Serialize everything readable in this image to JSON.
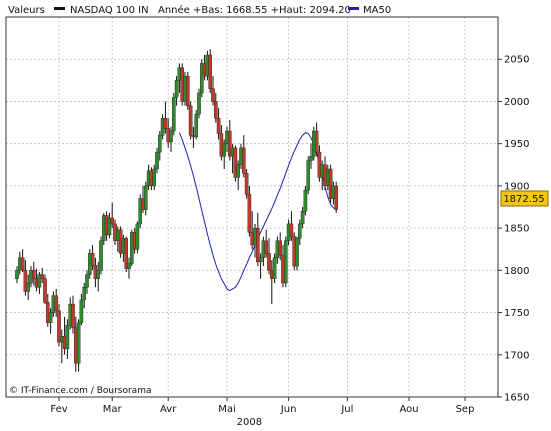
{
  "header": {
    "label": "Valeurs",
    "series_name": "NASDAQ 100 IN",
    "stats": "Année +Bas: 1668.55 +Haut: 2094.20",
    "ma_name": "MA50"
  },
  "copyright": "© IT-Finance.com / Boursorama",
  "last_value": "1872.55",
  "colors": {
    "up": "#2e8b2e",
    "down": "#c0392b",
    "wick": "#111111",
    "ma": "#1f23b0",
    "grid": "#bcbcbc",
    "last_label_bg": "#f5c518"
  },
  "chart_data": {
    "type": "candlestick",
    "title": "",
    "xlabel": "2008",
    "ylabel": "",
    "ylim": [
      1650,
      2100
    ],
    "yticks": [
      1650,
      1700,
      1750,
      1800,
      1850,
      1900,
      1950,
      2000,
      2050
    ],
    "xtick_labels": [
      {
        "label": "Fev",
        "index": 15
      },
      {
        "label": "Mar",
        "index": 34
      },
      {
        "label": "Avr",
        "index": 54
      },
      {
        "label": "Mai",
        "index": 75
      },
      {
        "label": "2008",
        "index": 83
      },
      {
        "label": "Jun",
        "index": 97
      },
      {
        "label": "Jul",
        "index": 118
      },
      {
        "label": "Aou",
        "index": 140
      },
      {
        "label": "Sep",
        "index": 160
      }
    ],
    "grid": true,
    "series": [
      {
        "name": "NASDAQ 100 IN",
        "kind": "ohlc",
        "ohlc": [
          [
            1790,
            1805,
            1785,
            1800
          ],
          [
            1800,
            1822,
            1795,
            1815
          ],
          [
            1815,
            1825,
            1798,
            1800
          ],
          [
            1800,
            1812,
            1770,
            1775
          ],
          [
            1775,
            1795,
            1765,
            1785
          ],
          [
            1785,
            1805,
            1780,
            1800
          ],
          [
            1800,
            1810,
            1782,
            1790
          ],
          [
            1790,
            1802,
            1775,
            1780
          ],
          [
            1780,
            1798,
            1772,
            1795
          ],
          [
            1795,
            1803,
            1785,
            1790
          ],
          [
            1790,
            1795,
            1760,
            1762
          ],
          [
            1762,
            1772,
            1733,
            1738
          ],
          [
            1738,
            1755,
            1725,
            1750
          ],
          [
            1750,
            1775,
            1745,
            1770
          ],
          [
            1770,
            1778,
            1745,
            1752
          ],
          [
            1752,
            1760,
            1710,
            1715
          ],
          [
            1715,
            1730,
            1690,
            1722
          ],
          [
            1722,
            1745,
            1700,
            1707
          ],
          [
            1707,
            1742,
            1695,
            1735
          ],
          [
            1735,
            1768,
            1730,
            1760
          ],
          [
            1760,
            1770,
            1725,
            1732
          ],
          [
            1732,
            1745,
            1680,
            1690
          ],
          [
            1690,
            1742,
            1680,
            1738
          ],
          [
            1738,
            1772,
            1735,
            1765
          ],
          [
            1765,
            1785,
            1755,
            1780
          ],
          [
            1780,
            1800,
            1772,
            1795
          ],
          [
            1795,
            1825,
            1790,
            1820
          ],
          [
            1820,
            1830,
            1800,
            1806
          ],
          [
            1806,
            1815,
            1780,
            1790
          ],
          [
            1790,
            1810,
            1775,
            1800
          ],
          [
            1800,
            1840,
            1795,
            1835
          ],
          [
            1835,
            1868,
            1830,
            1865
          ],
          [
            1865,
            1870,
            1835,
            1842
          ],
          [
            1842,
            1868,
            1838,
            1862
          ],
          [
            1862,
            1880,
            1850,
            1855
          ],
          [
            1855,
            1860,
            1830,
            1835
          ],
          [
            1835,
            1852,
            1822,
            1848
          ],
          [
            1848,
            1852,
            1815,
            1820
          ],
          [
            1820,
            1842,
            1810,
            1838
          ],
          [
            1838,
            1840,
            1798,
            1802
          ],
          [
            1802,
            1815,
            1790,
            1808
          ],
          [
            1808,
            1848,
            1805,
            1845
          ],
          [
            1845,
            1850,
            1820,
            1825
          ],
          [
            1825,
            1858,
            1820,
            1855
          ],
          [
            1855,
            1890,
            1850,
            1885
          ],
          [
            1885,
            1900,
            1868,
            1872
          ],
          [
            1872,
            1905,
            1865,
            1900
          ],
          [
            1900,
            1925,
            1895,
            1918
          ],
          [
            1918,
            1922,
            1895,
            1900
          ],
          [
            1900,
            1925,
            1895,
            1920
          ],
          [
            1920,
            1945,
            1915,
            1940
          ],
          [
            1940,
            1965,
            1930,
            1960
          ],
          [
            1960,
            1985,
            1955,
            1980
          ],
          [
            1980,
            2000,
            1962,
            1968
          ],
          [
            1968,
            1980,
            1945,
            1952
          ],
          [
            1952,
            1970,
            1940,
            1965
          ],
          [
            1965,
            2010,
            1960,
            2005
          ],
          [
            2005,
            2030,
            1995,
            2025
          ],
          [
            2025,
            2045,
            2010,
            2040
          ],
          [
            2040,
            2045,
            1995,
            2000
          ],
          [
            2000,
            2035,
            1995,
            2030
          ],
          [
            2030,
            2035,
            1990,
            1995
          ],
          [
            1995,
            2000,
            1955,
            1960
          ],
          [
            1960,
            1970,
            1945,
            1958
          ],
          [
            1958,
            1990,
            1955,
            1985
          ],
          [
            1985,
            2015,
            1980,
            2010
          ],
          [
            2010,
            2050,
            2005,
            2045
          ],
          [
            2045,
            2055,
            2025,
            2030
          ],
          [
            2030,
            2060,
            2025,
            2055
          ],
          [
            2055,
            2062,
            2010,
            2015
          ],
          [
            2015,
            2030,
            1995,
            2000
          ],
          [
            2000,
            2010,
            1975,
            1980
          ],
          [
            1980,
            1992,
            1955,
            1962
          ],
          [
            1962,
            1972,
            1930,
            1935
          ],
          [
            1935,
            1955,
            1920,
            1950
          ],
          [
            1950,
            1970,
            1940,
            1965
          ],
          [
            1965,
            1978,
            1930,
            1935
          ],
          [
            1935,
            1950,
            1915,
            1945
          ],
          [
            1945,
            1948,
            1905,
            1910
          ],
          [
            1910,
            1930,
            1895,
            1925
          ],
          [
            1925,
            1950,
            1920,
            1945
          ],
          [
            1945,
            1960,
            1910,
            1915
          ],
          [
            1915,
            1920,
            1885,
            1890
          ],
          [
            1890,
            1900,
            1840,
            1845
          ],
          [
            1845,
            1870,
            1825,
            1830
          ],
          [
            1830,
            1855,
            1815,
            1850
          ],
          [
            1850,
            1868,
            1805,
            1810
          ],
          [
            1810,
            1820,
            1790,
            1815
          ],
          [
            1815,
            1840,
            1805,
            1835
          ],
          [
            1835,
            1848,
            1815,
            1820
          ],
          [
            1820,
            1838,
            1795,
            1800
          ],
          [
            1800,
            1812,
            1760,
            1790
          ],
          [
            1790,
            1820,
            1785,
            1815
          ],
          [
            1815,
            1840,
            1808,
            1835
          ],
          [
            1835,
            1845,
            1812,
            1818
          ],
          [
            1818,
            1830,
            1780,
            1785
          ],
          [
            1785,
            1840,
            1780,
            1835
          ],
          [
            1835,
            1860,
            1830,
            1855
          ],
          [
            1855,
            1870,
            1835,
            1840
          ],
          [
            1840,
            1845,
            1800,
            1805
          ],
          [
            1805,
            1840,
            1800,
            1838
          ],
          [
            1838,
            1860,
            1830,
            1855
          ],
          [
            1855,
            1875,
            1850,
            1870
          ],
          [
            1870,
            1900,
            1865,
            1895
          ],
          [
            1895,
            1935,
            1890,
            1930
          ],
          [
            1930,
            1950,
            1920,
            1935
          ],
          [
            1935,
            1970,
            1930,
            1965
          ],
          [
            1965,
            1975,
            1935,
            1940
          ],
          [
            1940,
            1948,
            1905,
            1910
          ],
          [
            1910,
            1930,
            1895,
            1925
          ],
          [
            1925,
            1935,
            1895,
            1900
          ],
          [
            1900,
            1925,
            1895,
            1920
          ],
          [
            1920,
            1925,
            1880,
            1885
          ],
          [
            1885,
            1905,
            1878,
            1900
          ],
          [
            1900,
            1905,
            1868,
            1872
          ]
        ]
      },
      {
        "name": "MA50",
        "kind": "line",
        "values": [
          1963,
          1955,
          1945,
          1935,
          1924,
          1912,
          1899,
          1885,
          1871,
          1857,
          1843,
          1830,
          1818,
          1807,
          1798,
          1790,
          1784,
          1778,
          1776,
          1778,
          1780,
          1785,
          1792,
          1800,
          1807,
          1815,
          1822,
          1830,
          1838,
          1845,
          1852,
          1859,
          1866,
          1873,
          1881,
          1889,
          1897,
          1906,
          1915,
          1924,
          1933,
          1941,
          1948,
          1955,
          1960,
          1963,
          1962,
          1957,
          1949,
          1939,
          1927,
          1913,
          1899,
          1887,
          1878,
          1874,
          1872
        ]
      }
    ]
  }
}
